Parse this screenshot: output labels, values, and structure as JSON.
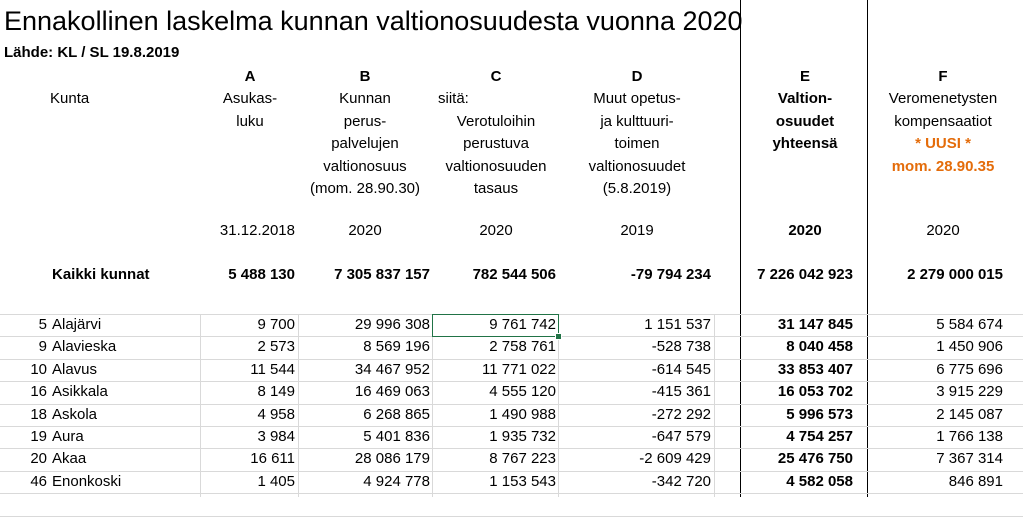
{
  "title": "Ennakollinen laskelma kunnan valtionosuudesta vuonna 2020",
  "source": "Lähde: KL / SL 19.8.2019",
  "columns": {
    "kunta": {
      "label": "Kunta"
    },
    "a": {
      "letter": "A",
      "lines": [
        "Asukas-",
        "luku"
      ],
      "date": "31.12.2018"
    },
    "b": {
      "letter": "B",
      "lines": [
        "Kunnan",
        "perus-",
        "palvelujen",
        "valtionosuus",
        "(mom. 28.90.30)"
      ],
      "date": "2020"
    },
    "c": {
      "letter": "C",
      "lines": [
        "siitä:",
        "Verotuloihin",
        "perustuva",
        "valtionosuuden",
        "tasaus"
      ],
      "date": "2020"
    },
    "d": {
      "letter": "D",
      "lines": [
        "Muut opetus-",
        "ja kulttuuri-",
        "toimen",
        "valtionosuudet",
        "(5.8.2019)"
      ],
      "date": "2019"
    },
    "e": {
      "letter": "E",
      "lines": [
        "Valtion-",
        "osuudet",
        "yhteensä"
      ],
      "date": "2020"
    },
    "f": {
      "letter": "F",
      "lines": [
        "Veromenetysten",
        "kompensaatiot",
        "* UUSI *",
        "mom. 28.90.35"
      ],
      "date": "2020"
    }
  },
  "totals": {
    "label": "Kaikki kunnat",
    "a": "5 488 130",
    "b": "7 305 837 157",
    "c": "782 544 506",
    "d": "-79 794 234",
    "e": "7 226 042 923",
    "f": "2 279 000 015"
  },
  "rows": [
    {
      "nr": "5",
      "name": "Alajärvi",
      "a": "9 700",
      "b": "29 996 308",
      "c": "9 761 742",
      "d": "1 151 537",
      "e": "31 147 845",
      "f": "5 584 674"
    },
    {
      "nr": "9",
      "name": "Alavieska",
      "a": "2 573",
      "b": "8 569 196",
      "c": "2 758 761",
      "d": "-528 738",
      "e": "8 040 458",
      "f": "1 450 906"
    },
    {
      "nr": "10",
      "name": "Alavus",
      "a": "11 544",
      "b": "34 467 952",
      "c": "11 771 022",
      "d": "-614 545",
      "e": "33 853 407",
      "f": "6 775 696"
    },
    {
      "nr": "16",
      "name": "Asikkala",
      "a": "8 149",
      "b": "16 469 063",
      "c": "4 555 120",
      "d": "-415 361",
      "e": "16 053 702",
      "f": "3 915 229"
    },
    {
      "nr": "18",
      "name": "Askola",
      "a": "4 958",
      "b": "6 268 865",
      "c": "1 490 988",
      "d": "-272 292",
      "e": "5 996 573",
      "f": "2 145 087"
    },
    {
      "nr": "19",
      "name": "Aura",
      "a": "3 984",
      "b": "5 401 836",
      "c": "1 935 732",
      "d": "-647 579",
      "e": "4 754 257",
      "f": "1 766 138"
    },
    {
      "nr": "20",
      "name": "Akaa",
      "a": "16 611",
      "b": "28 086 179",
      "c": "8 767 223",
      "d": "-2 609 429",
      "e": "25 476 750",
      "f": "7 367 314"
    },
    {
      "nr": "46",
      "name": "Enonkoski",
      "a": "1 405",
      "b": "4 924 778",
      "c": "1 153 543",
      "d": "-342 720",
      "e": "4 582 058",
      "f": "846 891"
    }
  ],
  "selected_cell": {
    "row": 0,
    "col": "c"
  }
}
